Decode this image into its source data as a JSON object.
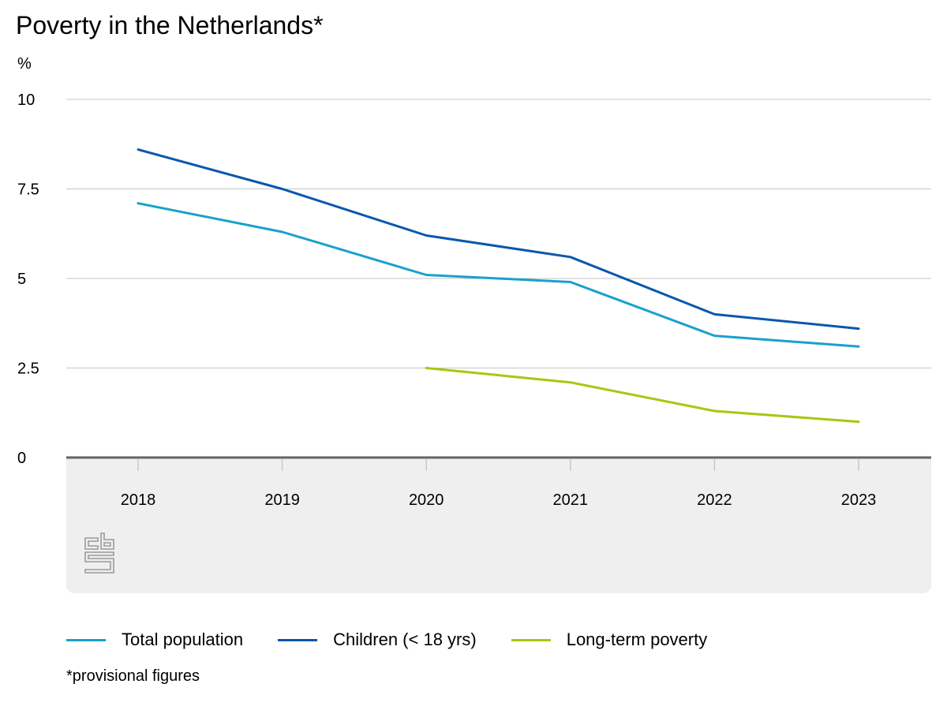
{
  "title": "Poverty in the Netherlands*",
  "unit_label": "%",
  "footnote": "*provisional figures",
  "colors": {
    "total": "#1aa0cd",
    "children": "#0a57ad",
    "longterm": "#a6c812",
    "grid": "#c6c6c6",
    "axis": "#666666",
    "band": "#efefef",
    "logo": "#9a9a9a"
  },
  "logo_icon": "cbs-logo-icon",
  "chart_data": {
    "type": "line",
    "title": "Poverty in the Netherlands*",
    "ylabel": "%",
    "ylim": [
      0,
      10
    ],
    "yticks": [
      0,
      2.5,
      5,
      7.5,
      10
    ],
    "ytick_labels": [
      "0",
      "2.5",
      "5",
      "7.5",
      "10"
    ],
    "categories": [
      "2018",
      "2019",
      "2020",
      "2021",
      "2022",
      "2023"
    ],
    "grid": true,
    "legend_position": "bottom",
    "series": [
      {
        "name": "Total population",
        "color_key": "total",
        "values": [
          7.1,
          6.3,
          5.1,
          4.9,
          3.4,
          3.1
        ]
      },
      {
        "name": "Children (< 18 yrs)",
        "color_key": "children",
        "values": [
          8.6,
          7.5,
          6.2,
          5.6,
          4.0,
          3.6
        ]
      },
      {
        "name": "Long-term poverty",
        "color_key": "longterm",
        "values": [
          null,
          null,
          2.5,
          2.1,
          1.3,
          1.0
        ]
      }
    ]
  }
}
